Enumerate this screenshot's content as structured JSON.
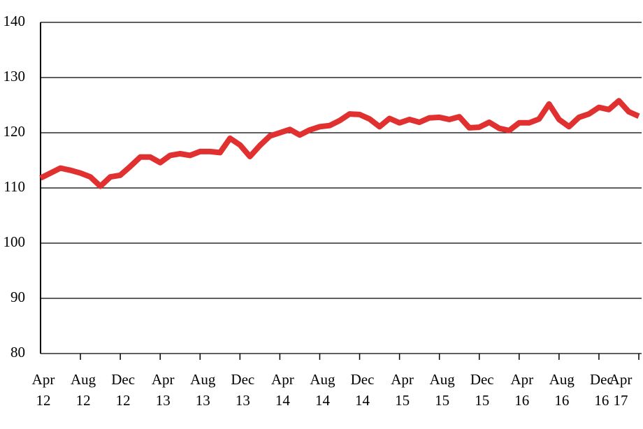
{
  "chart_data": {
    "type": "line",
    "categories": [
      "Apr\n12",
      null,
      null,
      null,
      "Aug\n12",
      null,
      null,
      null,
      "Dec\n12",
      null,
      null,
      null,
      "Apr\n13",
      null,
      null,
      null,
      "Aug\n13",
      null,
      null,
      null,
      "Dec\n13",
      null,
      null,
      null,
      "Apr\n14",
      null,
      null,
      null,
      "Aug\n14",
      null,
      null,
      null,
      "Dec\n14",
      null,
      null,
      null,
      "Apr\n15",
      null,
      null,
      null,
      "Aug\n15",
      null,
      null,
      null,
      "Dec\n15",
      null,
      null,
      null,
      "Apr\n16",
      null,
      null,
      null,
      "Aug\n16",
      null,
      null,
      null,
      "Dec\n16",
      null,
      null,
      null,
      "Apr\n17"
    ],
    "series": [
      {
        "color": "#e03030",
        "values": [
          111.8,
          112.7,
          113.6,
          113.2,
          112.7,
          112.0,
          110.3,
          112.0,
          112.3,
          113.9,
          115.6,
          115.6,
          114.6,
          115.9,
          116.2,
          115.9,
          116.6,
          116.6,
          116.4,
          119.0,
          117.8,
          115.7,
          117.7,
          119.4,
          120.0,
          120.6,
          119.6,
          120.5,
          121.1,
          121.3,
          122.2,
          123.4,
          123.3,
          122.5,
          121.1,
          122.6,
          121.8,
          122.4,
          121.9,
          122.7,
          122.8,
          122.4,
          122.9,
          120.9,
          121.0,
          121.9,
          120.8,
          120.4,
          121.8,
          121.8,
          122.5,
          125.2,
          122.4,
          121.1,
          122.8,
          123.4,
          124.6,
          124.2,
          125.8,
          123.8,
          123.0
        ]
      }
    ],
    "ylim": [
      80,
      140
    ],
    "yticks": [
      80,
      90,
      100,
      110,
      120,
      130,
      140
    ],
    "grid": true
  }
}
